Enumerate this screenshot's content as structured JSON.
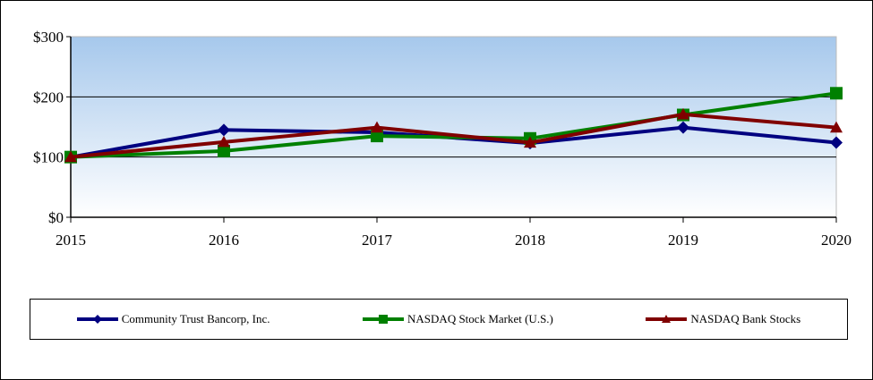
{
  "chart_data": {
    "type": "line",
    "title": "",
    "xlabel": "",
    "ylabel": "",
    "categories": [
      "2015",
      "2016",
      "2017",
      "2018",
      "2019",
      "2020"
    ],
    "ylim": [
      0,
      300
    ],
    "yticks": [
      0,
      100,
      200,
      300
    ],
    "ytick_labels": [
      "$0",
      "$100",
      "$200",
      "$300"
    ],
    "grid": "horizontal",
    "legend_position": "bottom",
    "series": [
      {
        "name": "Community Trust Bancorp, Inc.",
        "color": "#000080",
        "marker": "diamond",
        "values": [
          100,
          145,
          141,
          123,
          149,
          124
        ]
      },
      {
        "name": "NASDAQ Stock Market (U.S.)",
        "color": "#008000",
        "marker": "square",
        "values": [
          100,
          110,
          135,
          131,
          170,
          206
        ]
      },
      {
        "name": "NASDAQ Bank Stocks",
        "color": "#800000",
        "marker": "triangle",
        "values": [
          100,
          125,
          149,
          124,
          171,
          149
        ]
      }
    ]
  }
}
